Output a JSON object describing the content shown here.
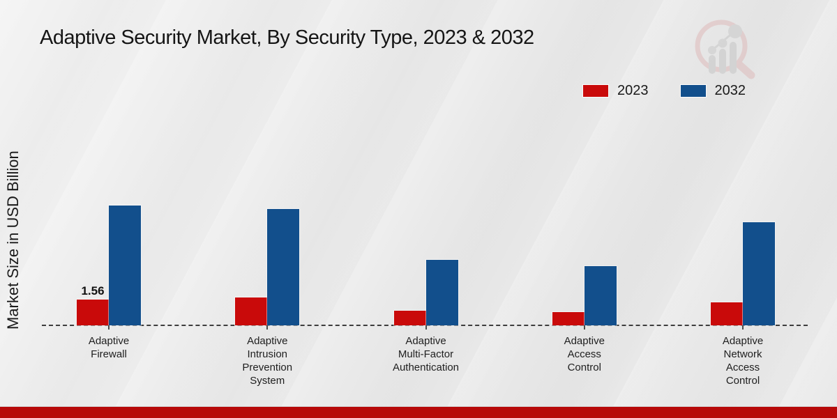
{
  "title": "Adaptive Security Market, By Security Type, 2023 & 2032",
  "y_axis_label": "Market Size in USD Billion",
  "legend": {
    "position": "top-right",
    "items": [
      {
        "label": "2023",
        "color": "#c90a0a"
      },
      {
        "label": "2032",
        "color": "#124f8c"
      }
    ]
  },
  "colors": {
    "series_2023": "#c90a0a",
    "series_2032": "#124f8c",
    "footer_bar": "#b70909",
    "background": "#e9e9e9",
    "baseline": "#3d3d3d",
    "text": "#1c1c1c"
  },
  "footer": {},
  "logo_icon": "magnifier-bar-chart-watermark",
  "chart_data": {
    "type": "bar",
    "title": "Adaptive Security Market, By Security Type, 2023 & 2032",
    "xlabel": "",
    "ylabel": "Market Size in USD Billion",
    "categories": [
      "Adaptive Firewall",
      "Adaptive Intrusion Prevention System",
      "Adaptive Multi-Factor Authentication",
      "Adaptive Access Control",
      "Adaptive Network Access Control"
    ],
    "series": [
      {
        "name": "2023",
        "color": "#c90a0a",
        "values": [
          1.56,
          1.69,
          0.89,
          0.8,
          1.39
        ]
      },
      {
        "name": "2032",
        "color": "#124f8c",
        "values": [
          7.25,
          7.04,
          3.96,
          3.58,
          6.24
        ]
      }
    ],
    "annotations": [
      {
        "series": "2023",
        "category_index": 0,
        "text": "1.56"
      }
    ],
    "ylim": [
      0,
      8
    ],
    "grid": false,
    "y_axis_ticks_visible": false,
    "baseline_style": "dashed",
    "legend_position": "top-right"
  }
}
